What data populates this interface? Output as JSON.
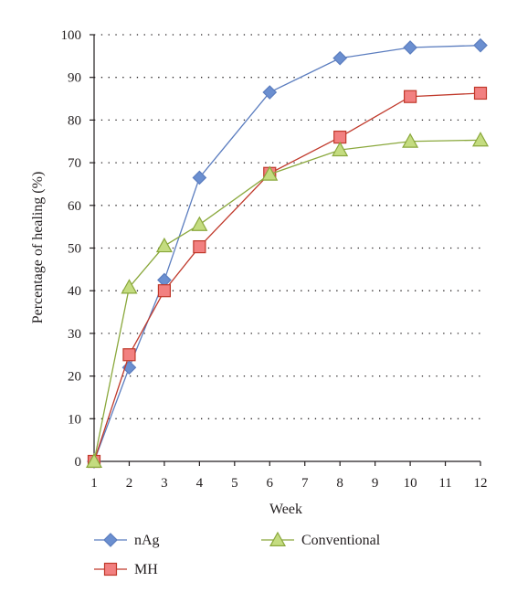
{
  "chart_data": {
    "type": "line",
    "xlabel": "Week",
    "ylabel": "Percentage of healing (%)",
    "x": [
      1,
      2,
      3,
      4,
      6,
      8,
      10,
      12
    ],
    "x_ticks": [
      "1",
      "2",
      "3",
      "4",
      "5",
      "6",
      "7",
      "8",
      "9",
      "10",
      "11",
      "12"
    ],
    "y_ticks": [
      "0",
      "10",
      "20",
      "30",
      "40",
      "50",
      "60",
      "70",
      "80",
      "90",
      "100"
    ],
    "xlim": [
      1,
      12
    ],
    "ylim": [
      0,
      100
    ],
    "grid": "horizontal-dotted",
    "legend": "bottom",
    "series": [
      {
        "name": "nAg",
        "marker": "diamond",
        "color": "#5b7dbf",
        "fill": "#6b8fd0",
        "values": [
          0,
          22,
          42.5,
          66.5,
          86.5,
          94.5,
          97,
          97.5
        ]
      },
      {
        "name": "MH",
        "marker": "square",
        "color": "#c0392b",
        "fill": "#f28080",
        "values": [
          0,
          25,
          40,
          50.3,
          67.5,
          76,
          85.5,
          86.3
        ]
      },
      {
        "name": "Conventional",
        "marker": "triangle",
        "color": "#8aa83c",
        "fill": "#c4dc80",
        "values": [
          0,
          40.8,
          50.5,
          55.5,
          67.3,
          73,
          75,
          75.3
        ]
      }
    ]
  }
}
